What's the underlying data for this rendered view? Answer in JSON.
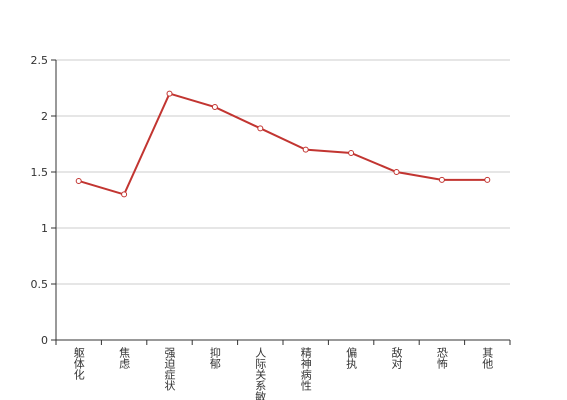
{
  "chart_data": {
    "type": "line",
    "categories": [
      "躯体化",
      "焦虑",
      "强迫症状",
      "抑郁",
      "人际关系敏感",
      "精神病性",
      "偏执",
      "敌对",
      "恐怖",
      "其他"
    ],
    "series": [
      {
        "color": "#c23531",
        "values": [
          1.42,
          1.3,
          2.2,
          2.08,
          1.89,
          1.7,
          1.67,
          1.5,
          1.43,
          1.43
        ]
      }
    ],
    "ylim": [
      0,
      2.5
    ],
    "yticks": [
      0,
      0.5,
      1,
      1.5,
      2,
      2.5
    ],
    "grid": true
  }
}
